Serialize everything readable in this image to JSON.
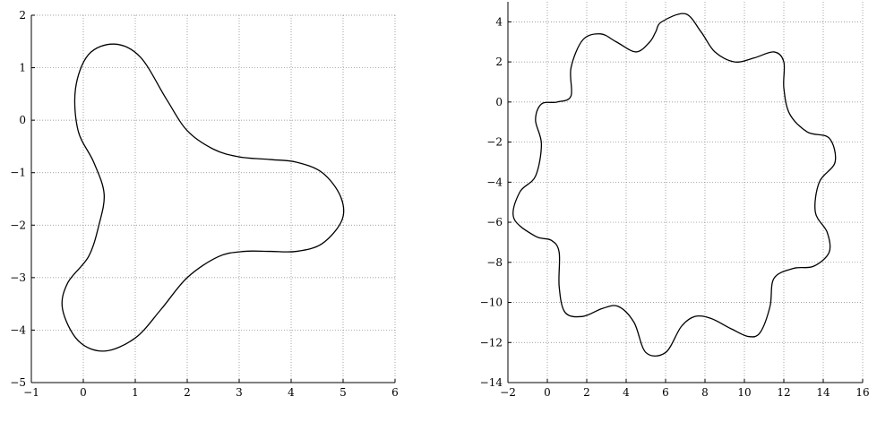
{
  "chart_data": [
    {
      "type": "line",
      "title": "",
      "xlabel": "",
      "ylabel": "",
      "xlim": [
        -1,
        6
      ],
      "ylim": [
        -5,
        2
      ],
      "grid": true,
      "xticks": [
        "−1",
        "0",
        "1",
        "2",
        "3",
        "4",
        "5",
        "6"
      ],
      "yticks": [
        "2",
        "1",
        "0",
        "−1",
        "−2",
        "−3",
        "−4",
        "−5"
      ],
      "series": [
        {
          "x": [
            0.6,
            1.1,
            1.6,
            2.0,
            2.5,
            3.0,
            3.6,
            4.1,
            4.6,
            4.95,
            4.98,
            4.6,
            4.1,
            3.6,
            3.1,
            2.6,
            2.0,
            1.5,
            1.0,
            0.4,
            -0.1,
            -0.4,
            -0.3,
            0.1,
            0.3,
            0.4,
            0.2,
            -0.1,
            -0.15,
            0.1,
            0.6
          ],
          "y": [
            1.45,
            1.2,
            0.4,
            -0.2,
            -0.55,
            -0.7,
            -0.75,
            -0.8,
            -1.0,
            -1.45,
            -1.9,
            -2.35,
            -2.5,
            -2.5,
            -2.5,
            -2.6,
            -3.0,
            -3.6,
            -4.15,
            -4.4,
            -4.2,
            -3.6,
            -3.1,
            -2.6,
            -2.0,
            -1.4,
            -0.8,
            -0.2,
            0.6,
            1.25,
            1.45
          ]
        }
      ]
    },
    {
      "type": "line",
      "title": "",
      "xlabel": "",
      "ylabel": "",
      "xlim": [
        -2,
        16
      ],
      "ylim": [
        -14,
        5
      ],
      "grid": true,
      "xticks": [
        "−2",
        "0",
        "2",
        "4",
        "6",
        "8",
        "10",
        "12",
        "14",
        "16"
      ],
      "yticks": [
        "4",
        "2",
        "0",
        "−2",
        "−4",
        "−6",
        "−8",
        "−10",
        "−12",
        "−14"
      ],
      "series": [
        {
          "x": [
            7.0,
            7.8,
            8.5,
            9.5,
            10.5,
            11.5,
            12.0,
            12.0,
            12.3,
            13.2,
            14.3,
            14.6,
            13.8,
            13.6,
            14.2,
            14.3,
            13.5,
            12.5,
            11.5,
            11.3,
            10.8,
            10.2,
            9.3,
            8.3,
            7.5,
            6.8,
            6.0,
            5.0,
            4.4,
            3.6,
            2.8,
            1.8,
            0.9,
            0.6,
            0.6,
            0.2,
            -0.6,
            -1.7,
            -1.4,
            -0.6,
            -0.3,
            -0.6,
            -0.3,
            0.5,
            1.2,
            1.2,
            1.8,
            2.7,
            3.5,
            4.5,
            5.2,
            5.5,
            5.8,
            7.0
          ],
          "y": [
            4.4,
            3.5,
            2.5,
            2.0,
            2.2,
            2.5,
            2.0,
            0.7,
            -0.6,
            -1.5,
            -1.8,
            -3.0,
            -4.0,
            -5.5,
            -6.5,
            -7.5,
            -8.2,
            -8.3,
            -8.8,
            -10.2,
            -11.5,
            -11.7,
            -11.3,
            -10.8,
            -10.7,
            -11.2,
            -12.5,
            -12.5,
            -11.0,
            -10.2,
            -10.3,
            -10.7,
            -10.5,
            -9.2,
            -7.5,
            -6.9,
            -6.7,
            -5.8,
            -4.5,
            -3.7,
            -2.1,
            -0.9,
            -0.1,
            0.0,
            0.3,
            1.7,
            3.1,
            3.4,
            3.0,
            2.5,
            3.0,
            3.5,
            4.0,
            4.4
          ]
        }
      ]
    }
  ]
}
